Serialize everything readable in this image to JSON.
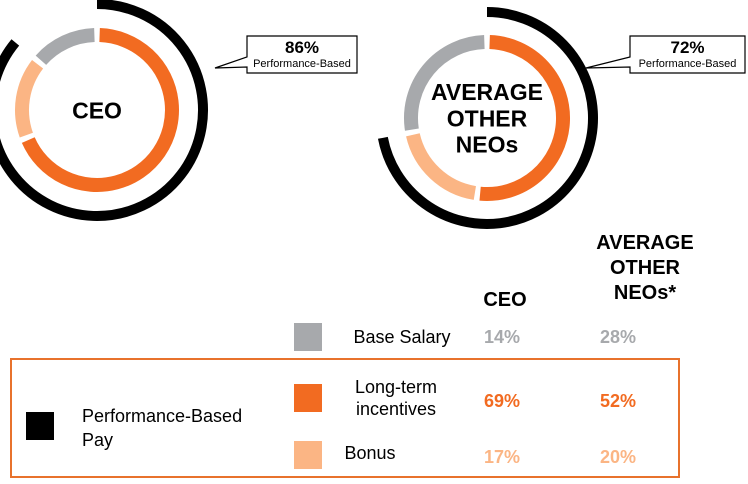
{
  "colors": {
    "base_salary": "#a7a9ac",
    "long_term": "#f26b21",
    "bonus": "#fbb584",
    "performance": "#000000",
    "frame": "#e8722c"
  },
  "chart_data": [
    {
      "type": "pie",
      "style": "donut",
      "center_label": [
        "CEO"
      ],
      "categories": [
        "Base Salary",
        "Long-term incentives",
        "Bonus"
      ],
      "values": [
        14,
        69,
        17
      ],
      "performance_based_pct": 86,
      "callout": {
        "value": "86%",
        "label": "Performance-Based"
      }
    },
    {
      "type": "pie",
      "style": "donut",
      "center_label": [
        "AVERAGE",
        "OTHER",
        "NEOs"
      ],
      "categories": [
        "Base Salary",
        "Long-term incentives",
        "Bonus"
      ],
      "values": [
        28,
        52,
        20
      ],
      "performance_based_pct": 72,
      "callout": {
        "value": "72%",
        "label": "Performance-Based"
      }
    }
  ],
  "table": {
    "headers": {
      "ceo": "CEO",
      "neo_lines": [
        "AVERAGE",
        "OTHER",
        "NEOs*"
      ]
    },
    "rows": [
      {
        "label_lines": [
          "Base Salary"
        ],
        "ceo": "14%",
        "neo": "28%"
      },
      {
        "label_lines": [
          "Long-term",
          "incentives"
        ],
        "ceo": "69%",
        "neo": "52%"
      },
      {
        "label_lines": [
          "Bonus"
        ],
        "ceo": "17%",
        "neo": "20%"
      }
    ],
    "group_label_lines": [
      "Performance-Based",
      "Pay"
    ]
  }
}
